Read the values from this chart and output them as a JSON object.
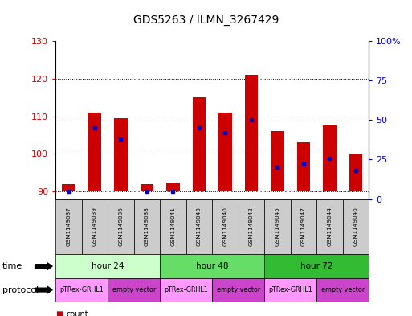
{
  "title": "GDS5263 / ILMN_3267429",
  "samples": [
    "GSM1149037",
    "GSM1149039",
    "GSM1149036",
    "GSM1149038",
    "GSM1149041",
    "GSM1149043",
    "GSM1149040",
    "GSM1149042",
    "GSM1149045",
    "GSM1149047",
    "GSM1149044",
    "GSM1149046"
  ],
  "count_values": [
    92,
    111,
    109.5,
    92,
    92.5,
    115,
    111,
    121,
    106,
    103,
    107.5,
    100
  ],
  "percentile_values": [
    5,
    45,
    38,
    5,
    5,
    45,
    42,
    50,
    20,
    22,
    26,
    18
  ],
  "ylim_left": [
    88,
    130
  ],
  "ylim_right": [
    0,
    100
  ],
  "yticks_left": [
    90,
    100,
    110,
    120,
    130
  ],
  "yticks_right": [
    0,
    25,
    50,
    75,
    100
  ],
  "ytick_labels_right": [
    "0",
    "25",
    "50",
    "75",
    "100%"
  ],
  "baseline": 90,
  "time_groups": [
    {
      "label": "hour 24",
      "start": 0,
      "end": 4
    },
    {
      "label": "hour 48",
      "start": 4,
      "end": 8
    },
    {
      "label": "hour 72",
      "start": 8,
      "end": 12
    }
  ],
  "protocol_groups": [
    {
      "label": "pTRex-GRHL1",
      "start": 0,
      "end": 2
    },
    {
      "label": "empty vector",
      "start": 2,
      "end": 4
    },
    {
      "label": "pTRex-GRHL1",
      "start": 4,
      "end": 6
    },
    {
      "label": "empty vector",
      "start": 6,
      "end": 8
    },
    {
      "label": "pTRex-GRHL1",
      "start": 8,
      "end": 10
    },
    {
      "label": "empty vector",
      "start": 10,
      "end": 12
    }
  ],
  "time_colors": [
    "#ccffcc",
    "#66dd66",
    "#33bb33"
  ],
  "protocol_colors_alt": [
    "#ff99ff",
    "#cc44cc"
  ],
  "bar_color": "#cc0000",
  "percentile_color": "#0000cc",
  "grid_color": "#000000",
  "axis_color_left": "#cc0000",
  "axis_color_right": "#0000cc",
  "sample_box_color": "#cccccc",
  "bar_width": 0.5,
  "title_fontsize": 10
}
